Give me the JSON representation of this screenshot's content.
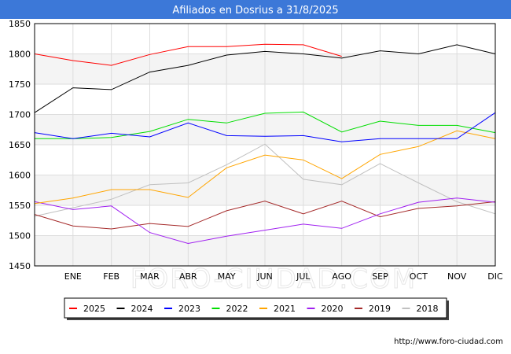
{
  "header": {
    "title": "Afiliados en Dosrius a 31/8/2025",
    "bg_color": "#3c78d8"
  },
  "source": "http://www.foro-ciudad.com",
  "watermark": "FORO-CIUDAD.COM",
  "chart_data": {
    "type": "line",
    "title": "Afiliados en Dosrius a 31/8/2025",
    "xlabel": "",
    "ylabel": "",
    "categories": [
      "",
      "ENE",
      "FEB",
      "MAR",
      "ABR",
      "MAY",
      "JUN",
      "JUL",
      "AGO",
      "SEP",
      "OCT",
      "NOV",
      "DIC"
    ],
    "ylim": [
      1450,
      1850
    ],
    "yticks": [
      1450,
      1500,
      1550,
      1600,
      1650,
      1700,
      1750,
      1800,
      1850
    ],
    "grid": true,
    "legend_position": "bottom",
    "series": [
      {
        "name": "2025",
        "color": "#ff0000",
        "values": [
          1800,
          1789,
          1781,
          1799,
          1812,
          1812,
          1816,
          1815,
          1796,
          null,
          null,
          null,
          null
        ]
      },
      {
        "name": "2024",
        "color": "#000000",
        "values": [
          1703,
          1744,
          1741,
          1770,
          1781,
          1798,
          1804,
          1800,
          1793,
          1805,
          1800,
          1815,
          1800
        ]
      },
      {
        "name": "2023",
        "color": "#0000ff",
        "values": [
          1670,
          1660,
          1669,
          1663,
          1686,
          1665,
          1664,
          1665,
          1655,
          1660,
          1660,
          1660,
          1703
        ]
      },
      {
        "name": "2022",
        "color": "#00dd00",
        "values": [
          1660,
          1660,
          1662,
          1672,
          1692,
          1686,
          1702,
          1704,
          1671,
          1689,
          1682,
          1682,
          1670
        ]
      },
      {
        "name": "2021",
        "color": "#ffa500",
        "values": [
          1553,
          1562,
          1576,
          1576,
          1563,
          1612,
          1633,
          1625,
          1594,
          1634,
          1647,
          1673,
          1660
        ]
      },
      {
        "name": "2020",
        "color": "#a020f0",
        "values": [
          1556,
          1543,
          1549,
          1505,
          1487,
          1499,
          1509,
          1519,
          1512,
          1536,
          1555,
          1562,
          1555
        ]
      },
      {
        "name": "2019",
        "color": "#a52a2a",
        "values": [
          1535,
          1516,
          1511,
          1520,
          1515,
          1541,
          1557,
          1536,
          1557,
          1531,
          1545,
          1549,
          1556
        ]
      },
      {
        "name": "2018",
        "color": "#c0c0c0",
        "values": [
          1532,
          1546,
          1560,
          1584,
          1587,
          1617,
          1651,
          1593,
          1584,
          1619,
          1587,
          1556,
          1536
        ]
      }
    ]
  }
}
